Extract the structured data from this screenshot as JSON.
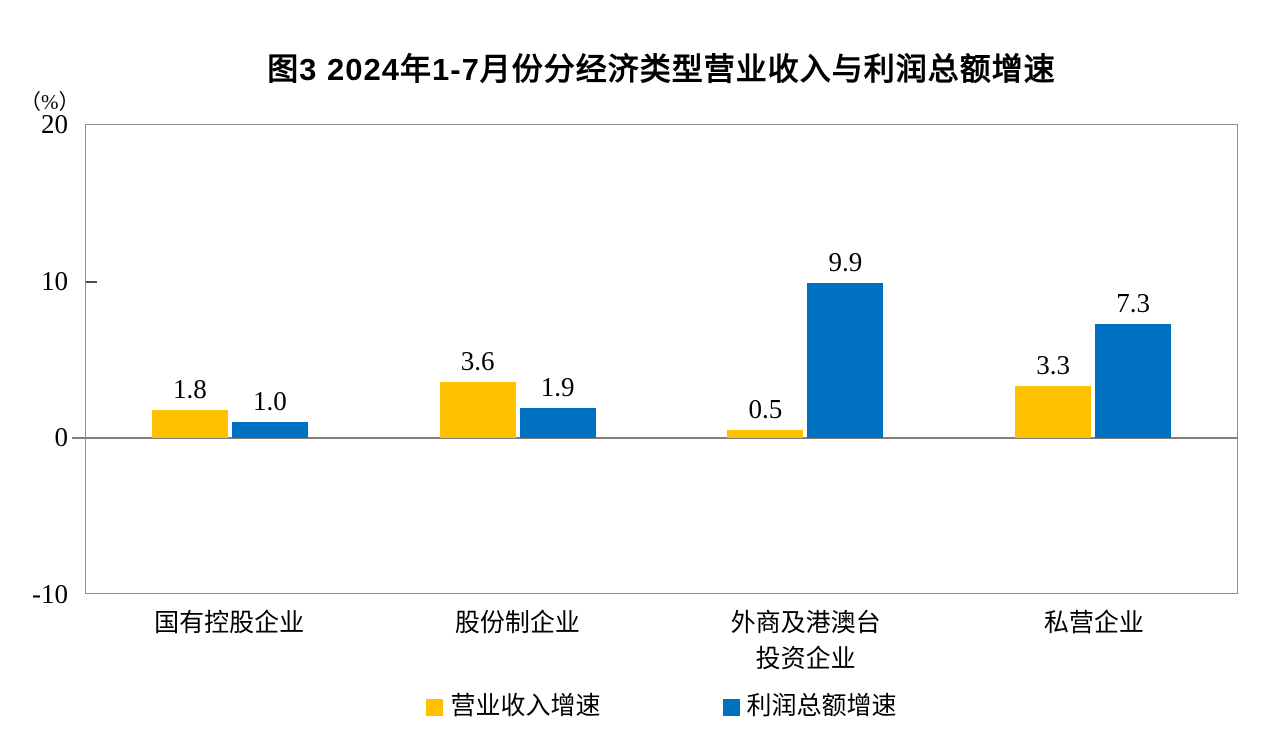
{
  "chart_data": {
    "type": "bar",
    "title": "图3 2024年1-7月份分经济类型营业收入与利润总额增速",
    "ylabel": "（%）",
    "xlabel": "",
    "ylim": [
      -10,
      20
    ],
    "ytick_values": [
      20,
      10,
      0,
      -10
    ],
    "yticks": [
      "20",
      "10",
      "0",
      "-10"
    ],
    "grid": false,
    "legend_position": "bottom",
    "categories": [
      "国有控股企业",
      "股份制企业",
      "外商及港澳台\n投资企业",
      "私营企业"
    ],
    "series": [
      {
        "name": "营业收入增速",
        "color": "#FFC000",
        "values": [
          1.8,
          3.6,
          0.5,
          3.3
        ],
        "labels": [
          "1.8",
          "3.6",
          "0.5",
          "3.3"
        ]
      },
      {
        "name": "利润总额增速",
        "color": "#0070C0",
        "values": [
          1.0,
          1.9,
          9.9,
          7.3
        ],
        "labels": [
          "1.0",
          "1.9",
          "9.9",
          "7.3"
        ]
      }
    ],
    "axis_color": "#8c8c8c",
    "zero_line_color": "#808080"
  }
}
